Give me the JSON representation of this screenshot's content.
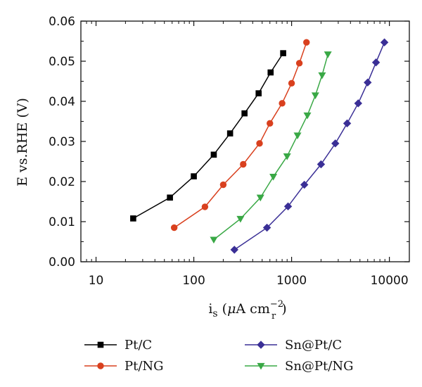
{
  "chart_data": {
    "type": "line",
    "xlabel_parts": {
      "main": "i",
      "sub": "s",
      "unit_open": " (",
      "mu": "μ",
      "unit_mid": "A cm",
      "exp": "−2",
      "exp_sub": "r",
      "unit_close": ")"
    },
    "ylabel": "E vs.RHE (V)",
    "x_scale": "log",
    "xlim": [
      7,
      16000
    ],
    "ylim": [
      0,
      0.06
    ],
    "x_ticks": [
      10,
      100,
      1000,
      10000
    ],
    "x_tick_labels": [
      "10",
      "100",
      "1000",
      "10000"
    ],
    "y_ticks": [
      0,
      0.01,
      0.02,
      0.03,
      0.04,
      0.05,
      0.06
    ],
    "y_tick_labels": [
      "0.00",
      "0.01",
      "0.02",
      "0.03",
      "0.04",
      "0.05",
      "0.06"
    ],
    "grid": false,
    "legend_position": "bottom",
    "series": [
      {
        "name": "Pt/C",
        "color": "#000000",
        "marker": "square",
        "x": [
          24,
          57,
          100,
          160,
          235,
          330,
          460,
          610,
          820
        ],
        "y": [
          0.0108,
          0.016,
          0.0213,
          0.0267,
          0.032,
          0.037,
          0.042,
          0.0472,
          0.052
        ]
      },
      {
        "name": "Pt/NG",
        "color": "#d9401e",
        "marker": "circle",
        "x": [
          63,
          130,
          200,
          320,
          470,
          600,
          800,
          1000,
          1200,
          1420
        ],
        "y": [
          0.0085,
          0.0137,
          0.0192,
          0.0243,
          0.0295,
          0.0345,
          0.0395,
          0.0445,
          0.0495,
          0.0547
        ]
      },
      {
        "name": "Sn@Pt/NG",
        "color": "#39a845",
        "marker": "triangle-down",
        "x": [
          160,
          300,
          480,
          650,
          900,
          1150,
          1450,
          1750,
          2050,
          2350
        ],
        "y": [
          0.0055,
          0.0107,
          0.016,
          0.0212,
          0.0263,
          0.0315,
          0.0365,
          0.0415,
          0.0465,
          0.0517
        ]
      },
      {
        "name": "Sn@Pt/C",
        "color": "#3a2f96",
        "marker": "diamond",
        "x": [
          260,
          560,
          920,
          1350,
          2000,
          2800,
          3700,
          4800,
          6000,
          7300,
          8900
        ],
        "y": [
          0.003,
          0.0085,
          0.0138,
          0.0192,
          0.0243,
          0.0295,
          0.0345,
          0.0395,
          0.0447,
          0.0497,
          0.0547
        ]
      }
    ],
    "legend_order": [
      "Pt/C",
      "Pt/NG",
      "Sn@Pt/C",
      "Sn@Pt/NG"
    ]
  }
}
